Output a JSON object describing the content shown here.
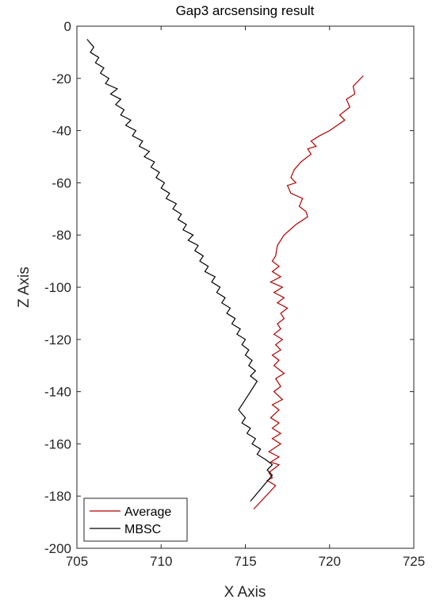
{
  "chart_data": {
    "type": "line",
    "title": "Gap3 arcsensing result",
    "xlabel": "X Axis",
    "ylabel": "Z Axis",
    "xlim": [
      705,
      725
    ],
    "ylim": [
      -200,
      0
    ],
    "xticks": [
      "705",
      "710",
      "715",
      "720",
      "725"
    ],
    "yticks": [
      "0",
      "-20",
      "-40",
      "-60",
      "-80",
      "-100",
      "-120",
      "-140",
      "-160",
      "-180",
      "-200"
    ],
    "grid": false,
    "legend_position": "bottom-left",
    "series": [
      {
        "name": "Average",
        "color": "#b00000",
        "points": [
          [
            722.0,
            -19
          ],
          [
            721.4,
            -23
          ],
          [
            721.5,
            -26
          ],
          [
            721.0,
            -28
          ],
          [
            721.2,
            -31
          ],
          [
            720.6,
            -34
          ],
          [
            720.9,
            -36
          ],
          [
            720.0,
            -40
          ],
          [
            719.4,
            -42
          ],
          [
            718.9,
            -44
          ],
          [
            719.2,
            -46
          ],
          [
            718.7,
            -47
          ],
          [
            718.9,
            -49
          ],
          [
            718.3,
            -52
          ],
          [
            717.9,
            -55
          ],
          [
            717.7,
            -58
          ],
          [
            718.0,
            -60
          ],
          [
            717.5,
            -61
          ],
          [
            717.7,
            -64
          ],
          [
            718.4,
            -66
          ],
          [
            718.2,
            -69
          ],
          [
            718.6,
            -71
          ],
          [
            718.7,
            -73
          ],
          [
            718.0,
            -76
          ],
          [
            717.3,
            -80
          ],
          [
            716.9,
            -84
          ],
          [
            716.8,
            -88
          ],
          [
            716.6,
            -90
          ],
          [
            717.0,
            -92
          ],
          [
            716.6,
            -94
          ],
          [
            717.1,
            -96
          ],
          [
            716.5,
            -98
          ],
          [
            717.2,
            -100
          ],
          [
            716.7,
            -102
          ],
          [
            717.3,
            -104
          ],
          [
            716.9,
            -106
          ],
          [
            717.5,
            -108
          ],
          [
            717.1,
            -110
          ],
          [
            717.3,
            -112
          ],
          [
            716.9,
            -114
          ],
          [
            717.1,
            -116
          ],
          [
            716.7,
            -118
          ],
          [
            717.2,
            -120
          ],
          [
            716.8,
            -122
          ],
          [
            717.1,
            -124
          ],
          [
            716.6,
            -126
          ],
          [
            717.0,
            -128
          ],
          [
            716.7,
            -130
          ],
          [
            717.3,
            -133
          ],
          [
            716.8,
            -135
          ],
          [
            717.1,
            -138
          ],
          [
            716.7,
            -140
          ],
          [
            717.2,
            -143
          ],
          [
            716.6,
            -145
          ],
          [
            717.0,
            -147
          ],
          [
            716.5,
            -150
          ],
          [
            717.0,
            -152
          ],
          [
            716.6,
            -154
          ],
          [
            717.1,
            -156
          ],
          [
            716.6,
            -158
          ],
          [
            717.1,
            -160
          ],
          [
            716.4,
            -163
          ],
          [
            717.0,
            -165
          ],
          [
            716.5,
            -167
          ],
          [
            717.0,
            -168
          ],
          [
            716.4,
            -171
          ],
          [
            716.6,
            -173
          ],
          [
            716.3,
            -174
          ],
          [
            716.8,
            -176
          ],
          [
            715.5,
            -185
          ]
        ]
      },
      {
        "name": "MBSC",
        "color": "#000000",
        "points": [
          [
            705.6,
            -5
          ],
          [
            706.0,
            -8
          ],
          [
            705.8,
            -10
          ],
          [
            706.3,
            -12
          ],
          [
            706.1,
            -14
          ],
          [
            706.6,
            -16
          ],
          [
            706.4,
            -18
          ],
          [
            706.9,
            -20
          ],
          [
            706.7,
            -22
          ],
          [
            707.4,
            -24
          ],
          [
            707.0,
            -26
          ],
          [
            707.6,
            -28
          ],
          [
            707.3,
            -30
          ],
          [
            707.8,
            -32
          ],
          [
            707.6,
            -34
          ],
          [
            708.2,
            -36
          ],
          [
            707.9,
            -38
          ],
          [
            708.5,
            -40
          ],
          [
            708.3,
            -42
          ],
          [
            708.9,
            -44
          ],
          [
            708.7,
            -46
          ],
          [
            709.3,
            -48
          ],
          [
            709.0,
            -50
          ],
          [
            709.6,
            -52
          ],
          [
            709.4,
            -54
          ],
          [
            709.9,
            -56
          ],
          [
            709.7,
            -58
          ],
          [
            710.2,
            -60
          ],
          [
            710.0,
            -62
          ],
          [
            710.5,
            -64
          ],
          [
            710.3,
            -66
          ],
          [
            710.9,
            -68
          ],
          [
            710.7,
            -70
          ],
          [
            711.2,
            -72
          ],
          [
            711.0,
            -74
          ],
          [
            711.5,
            -76
          ],
          [
            711.3,
            -78
          ],
          [
            711.9,
            -80
          ],
          [
            711.6,
            -82
          ],
          [
            712.2,
            -84
          ],
          [
            712.0,
            -86
          ],
          [
            712.5,
            -88
          ],
          [
            712.3,
            -90
          ],
          [
            712.8,
            -92
          ],
          [
            712.6,
            -94
          ],
          [
            713.2,
            -96
          ],
          [
            713.0,
            -98
          ],
          [
            713.5,
            -100
          ],
          [
            713.3,
            -102
          ],
          [
            713.8,
            -104
          ],
          [
            713.6,
            -106
          ],
          [
            714.1,
            -108
          ],
          [
            713.9,
            -110
          ],
          [
            714.4,
            -112
          ],
          [
            714.2,
            -114
          ],
          [
            714.7,
            -116
          ],
          [
            714.5,
            -118
          ],
          [
            715.0,
            -120
          ],
          [
            714.8,
            -122
          ],
          [
            715.2,
            -124
          ],
          [
            715.0,
            -126
          ],
          [
            715.4,
            -128
          ],
          [
            715.2,
            -130
          ],
          [
            715.6,
            -132
          ],
          [
            715.3,
            -134
          ],
          [
            715.7,
            -136
          ],
          [
            715.5,
            -138
          ],
          [
            715.2,
            -141
          ],
          [
            714.9,
            -144
          ],
          [
            714.6,
            -147
          ],
          [
            715.0,
            -150
          ],
          [
            714.8,
            -152
          ],
          [
            715.3,
            -154
          ],
          [
            715.1,
            -156
          ],
          [
            715.6,
            -158
          ],
          [
            715.4,
            -160
          ],
          [
            715.9,
            -162
          ],
          [
            715.7,
            -164
          ],
          [
            716.2,
            -166
          ],
          [
            716.6,
            -168
          ],
          [
            716.3,
            -170
          ],
          [
            716.6,
            -172
          ],
          [
            715.3,
            -182
          ]
        ]
      }
    ]
  }
}
